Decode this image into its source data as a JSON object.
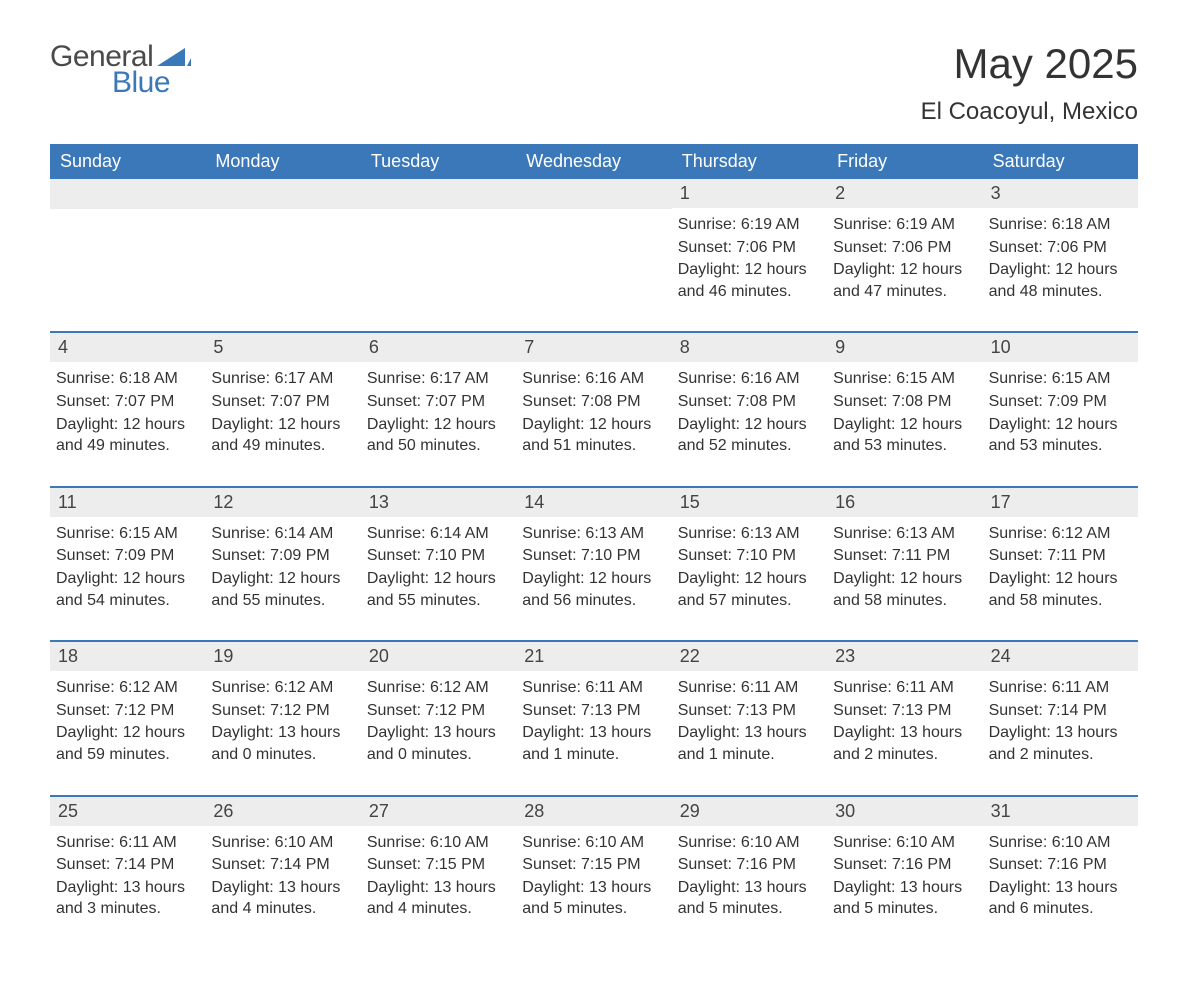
{
  "brand": {
    "part1": "General",
    "part2": "Blue"
  },
  "title": {
    "month": "May 2025",
    "location": "El Coacoyul, Mexico"
  },
  "labels": {
    "sunrise": "Sunrise:",
    "sunset": "Sunset:",
    "daylight": "Daylight:"
  },
  "colors": {
    "header_bg": "#3a78b9",
    "header_text": "#ffffff",
    "daynum_bg": "#ededed",
    "divider": "#3a78b9",
    "body_text": "#333333"
  },
  "daynames": [
    "Sunday",
    "Monday",
    "Tuesday",
    "Wednesday",
    "Thursday",
    "Friday",
    "Saturday"
  ],
  "weeks": [
    [
      null,
      null,
      null,
      null,
      {
        "n": "1",
        "sunrise": "6:19 AM",
        "sunset": "7:06 PM",
        "daylight": "12 hours and 46 minutes."
      },
      {
        "n": "2",
        "sunrise": "6:19 AM",
        "sunset": "7:06 PM",
        "daylight": "12 hours and 47 minutes."
      },
      {
        "n": "3",
        "sunrise": "6:18 AM",
        "sunset": "7:06 PM",
        "daylight": "12 hours and 48 minutes."
      }
    ],
    [
      {
        "n": "4",
        "sunrise": "6:18 AM",
        "sunset": "7:07 PM",
        "daylight": "12 hours and 49 minutes."
      },
      {
        "n": "5",
        "sunrise": "6:17 AM",
        "sunset": "7:07 PM",
        "daylight": "12 hours and 49 minutes."
      },
      {
        "n": "6",
        "sunrise": "6:17 AM",
        "sunset": "7:07 PM",
        "daylight": "12 hours and 50 minutes."
      },
      {
        "n": "7",
        "sunrise": "6:16 AM",
        "sunset": "7:08 PM",
        "daylight": "12 hours and 51 minutes."
      },
      {
        "n": "8",
        "sunrise": "6:16 AM",
        "sunset": "7:08 PM",
        "daylight": "12 hours and 52 minutes."
      },
      {
        "n": "9",
        "sunrise": "6:15 AM",
        "sunset": "7:08 PM",
        "daylight": "12 hours and 53 minutes."
      },
      {
        "n": "10",
        "sunrise": "6:15 AM",
        "sunset": "7:09 PM",
        "daylight": "12 hours and 53 minutes."
      }
    ],
    [
      {
        "n": "11",
        "sunrise": "6:15 AM",
        "sunset": "7:09 PM",
        "daylight": "12 hours and 54 minutes."
      },
      {
        "n": "12",
        "sunrise": "6:14 AM",
        "sunset": "7:09 PM",
        "daylight": "12 hours and 55 minutes."
      },
      {
        "n": "13",
        "sunrise": "6:14 AM",
        "sunset": "7:10 PM",
        "daylight": "12 hours and 55 minutes."
      },
      {
        "n": "14",
        "sunrise": "6:13 AM",
        "sunset": "7:10 PM",
        "daylight": "12 hours and 56 minutes."
      },
      {
        "n": "15",
        "sunrise": "6:13 AM",
        "sunset": "7:10 PM",
        "daylight": "12 hours and 57 minutes."
      },
      {
        "n": "16",
        "sunrise": "6:13 AM",
        "sunset": "7:11 PM",
        "daylight": "12 hours and 58 minutes."
      },
      {
        "n": "17",
        "sunrise": "6:12 AM",
        "sunset": "7:11 PM",
        "daylight": "12 hours and 58 minutes."
      }
    ],
    [
      {
        "n": "18",
        "sunrise": "6:12 AM",
        "sunset": "7:12 PM",
        "daylight": "12 hours and 59 minutes."
      },
      {
        "n": "19",
        "sunrise": "6:12 AM",
        "sunset": "7:12 PM",
        "daylight": "13 hours and 0 minutes."
      },
      {
        "n": "20",
        "sunrise": "6:12 AM",
        "sunset": "7:12 PM",
        "daylight": "13 hours and 0 minutes."
      },
      {
        "n": "21",
        "sunrise": "6:11 AM",
        "sunset": "7:13 PM",
        "daylight": "13 hours and 1 minute."
      },
      {
        "n": "22",
        "sunrise": "6:11 AM",
        "sunset": "7:13 PM",
        "daylight": "13 hours and 1 minute."
      },
      {
        "n": "23",
        "sunrise": "6:11 AM",
        "sunset": "7:13 PM",
        "daylight": "13 hours and 2 minutes."
      },
      {
        "n": "24",
        "sunrise": "6:11 AM",
        "sunset": "7:14 PM",
        "daylight": "13 hours and 2 minutes."
      }
    ],
    [
      {
        "n": "25",
        "sunrise": "6:11 AM",
        "sunset": "7:14 PM",
        "daylight": "13 hours and 3 minutes."
      },
      {
        "n": "26",
        "sunrise": "6:10 AM",
        "sunset": "7:14 PM",
        "daylight": "13 hours and 4 minutes."
      },
      {
        "n": "27",
        "sunrise": "6:10 AM",
        "sunset": "7:15 PM",
        "daylight": "13 hours and 4 minutes."
      },
      {
        "n": "28",
        "sunrise": "6:10 AM",
        "sunset": "7:15 PM",
        "daylight": "13 hours and 5 minutes."
      },
      {
        "n": "29",
        "sunrise": "6:10 AM",
        "sunset": "7:16 PM",
        "daylight": "13 hours and 5 minutes."
      },
      {
        "n": "30",
        "sunrise": "6:10 AM",
        "sunset": "7:16 PM",
        "daylight": "13 hours and 5 minutes."
      },
      {
        "n": "31",
        "sunrise": "6:10 AM",
        "sunset": "7:16 PM",
        "daylight": "13 hours and 6 minutes."
      }
    ]
  ]
}
